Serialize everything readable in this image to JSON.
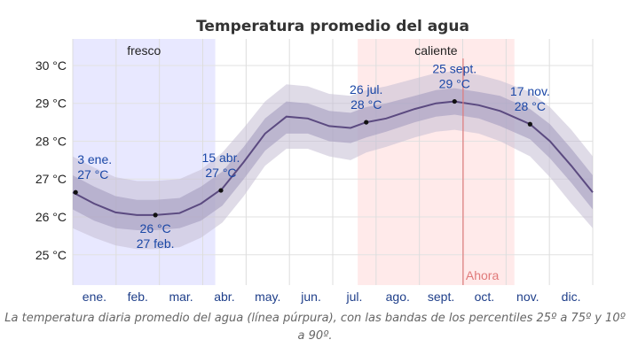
{
  "chart_data": {
    "type": "line",
    "title": "Temperatura promedio del agua",
    "caption": "La temperatura diaria promedio del agua (línea púrpura), con las bandas de los percentiles 25º a 75º y 10º a 90º.",
    "xlabel": "",
    "ylabel": "",
    "ylim": [
      24.2,
      30.7
    ],
    "y_ticks": [
      25,
      26,
      27,
      28,
      29,
      30
    ],
    "y_tick_labels": [
      "25 °C",
      "26 °C",
      "27 °C",
      "28 °C",
      "29 °C",
      "30 °C"
    ],
    "x_domain_days": [
      0,
      365
    ],
    "month_labels": [
      "ene.",
      "feb.",
      "mar.",
      "abr.",
      "may.",
      "jun.",
      "jul.",
      "ago.",
      "sept.",
      "oct.",
      "nov.",
      "dic."
    ],
    "season_bands": [
      {
        "label": "fresco",
        "start_day": 0,
        "end_day": 100,
        "color": "#d9d9ff"
      },
      {
        "label": "caliente",
        "start_day": 200,
        "end_day": 310,
        "color": "#ffdcdc"
      }
    ],
    "series": [
      {
        "name": "temperatura diaria promedio del agua",
        "color": "#5b4a80",
        "days": [
          0,
          15,
          30,
          45,
          58,
          75,
          90,
          105,
          120,
          135,
          150,
          165,
          180,
          195,
          206,
          220,
          240,
          255,
          268,
          285,
          300,
          321,
          335,
          350,
          365
        ],
        "mean": [
          26.65,
          26.35,
          26.12,
          26.05,
          26.05,
          26.1,
          26.35,
          26.75,
          27.45,
          28.2,
          28.65,
          28.6,
          28.4,
          28.35,
          28.5,
          28.6,
          28.85,
          29.0,
          29.05,
          28.95,
          28.8,
          28.45,
          28.0,
          27.35,
          26.65
        ],
        "p25": [
          26.2,
          25.9,
          25.7,
          25.65,
          25.65,
          25.7,
          25.9,
          26.3,
          27.0,
          27.75,
          28.2,
          28.2,
          28.0,
          27.95,
          28.1,
          28.25,
          28.5,
          28.65,
          28.7,
          28.6,
          28.4,
          28.05,
          27.55,
          26.9,
          26.2
        ],
        "p75": [
          27.1,
          26.8,
          26.55,
          26.45,
          26.45,
          26.5,
          26.8,
          27.2,
          27.85,
          28.6,
          29.05,
          29.0,
          28.8,
          28.75,
          28.9,
          29.0,
          29.2,
          29.35,
          29.4,
          29.3,
          29.2,
          28.85,
          28.45,
          27.8,
          27.1
        ],
        "p10": [
          25.7,
          25.45,
          25.25,
          25.15,
          25.15,
          25.2,
          25.45,
          25.85,
          26.55,
          27.35,
          27.8,
          27.8,
          27.6,
          27.5,
          27.7,
          27.85,
          28.1,
          28.25,
          28.3,
          28.2,
          28.0,
          27.6,
          27.05,
          26.35,
          25.7
        ],
        "p90": [
          27.6,
          27.3,
          27.05,
          26.95,
          26.95,
          27.0,
          27.25,
          27.7,
          28.35,
          29.05,
          29.5,
          29.45,
          29.25,
          29.2,
          29.35,
          29.45,
          29.65,
          29.8,
          29.85,
          29.75,
          29.6,
          29.3,
          28.9,
          28.3,
          27.6
        ]
      }
    ],
    "annotations": [
      {
        "day": 2,
        "value": 26.65,
        "lines": [
          "3 ene.",
          "27 °C"
        ],
        "position": "above",
        "align": "start"
      },
      {
        "day": 58,
        "value": 26.05,
        "lines": [
          "26 °C",
          "27 feb."
        ],
        "position": "below",
        "align": "middle"
      },
      {
        "day": 104,
        "value": 26.7,
        "lines": [
          "15 abr.",
          "27 °C"
        ],
        "position": "above",
        "align": "middle"
      },
      {
        "day": 206,
        "value": 28.5,
        "lines": [
          "26 jul.",
          "28 °C"
        ],
        "position": "above",
        "align": "middle"
      },
      {
        "day": 268,
        "value": 29.05,
        "lines": [
          "25 sept.",
          "29 °C"
        ],
        "position": "above",
        "align": "middle"
      },
      {
        "day": 321,
        "value": 28.45,
        "lines": [
          "17 nov.",
          "28 °C"
        ],
        "position": "above",
        "align": "middle"
      }
    ],
    "now_marker": {
      "label": "Ahora",
      "day": 274,
      "color": "#e07a7a"
    },
    "grid": true
  }
}
